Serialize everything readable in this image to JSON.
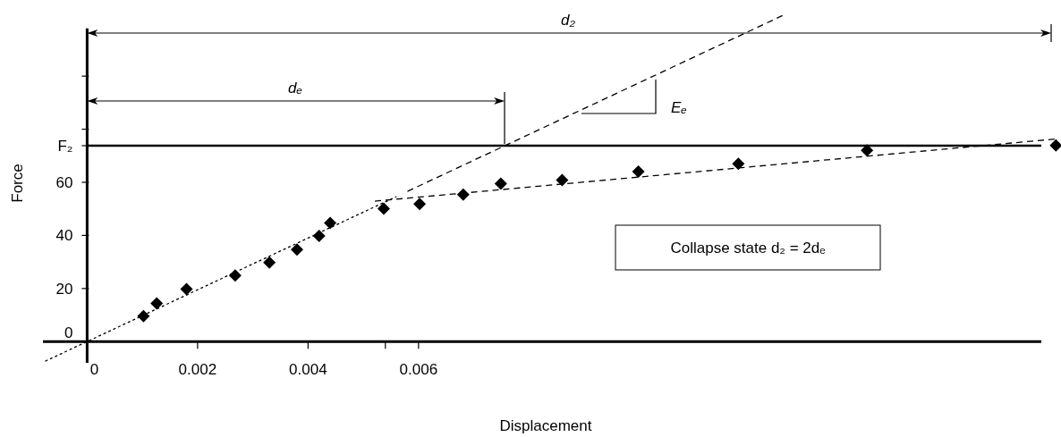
{
  "chart_data": {
    "type": "scatter",
    "xlabel": "Displacement",
    "ylabel": "Force",
    "xlim": [
      -0.0008,
      0.0176
    ],
    "ylim": [
      -8,
      128
    ],
    "xticks": [
      0,
      0.002,
      0.004,
      {
        "value": 0.0054,
        "label": null
      },
      0.006
    ],
    "yticks": [
      0,
      20,
      40,
      60,
      {
        "value": 73.8,
        "label": "F₂"
      },
      {
        "value": 80,
        "label": null
      },
      {
        "value": 100,
        "label": null
      }
    ],
    "marker": "diamond",
    "series": [
      {
        "color": "#000000",
        "x": [
          0.00102,
          0.00126,
          0.0018,
          0.00268,
          0.0033,
          0.0038,
          0.0042,
          0.0044,
          0.00537,
          0.00602,
          0.00681,
          0.00749,
          0.0086,
          0.00998,
          0.01179,
          0.01412,
          0.01754
        ],
        "values": [
          9.6,
          14.4,
          19.8,
          24.9,
          29.8,
          34.7,
          39.8,
          44.7,
          50.1,
          51.8,
          55.4,
          59.5,
          60.8,
          64,
          67,
          72,
          73.9
        ]
      },
      {
        "type": "line",
        "color": "#000000",
        "line_style": "dotted",
        "marker": "none",
        "x": [
          -0.00076,
          0.0056
        ],
        "values": [
          -7.4,
          54.6
        ]
      },
      {
        "type": "line",
        "color": "#000000",
        "line_style": "dashed",
        "marker": "none",
        "x": [
          0.0058,
          0.0126
        ],
        "values": [
          56.6,
          122.9
        ]
      },
      {
        "type": "line",
        "color": "#000000",
        "line_style": "dashed",
        "marker": "none",
        "x": [
          0.00521,
          0.01758
        ],
        "values": [
          52.9,
          76.4
        ]
      }
    ],
    "ref_lines": [
      {
        "axis": "y",
        "value": 73.8,
        "color": "#000000",
        "line_style": "solid"
      }
    ],
    "annotations": [
      "d₂",
      "dₑ",
      "Eₑ",
      "Collapse state  d₂ = 2dₑ"
    ]
  }
}
